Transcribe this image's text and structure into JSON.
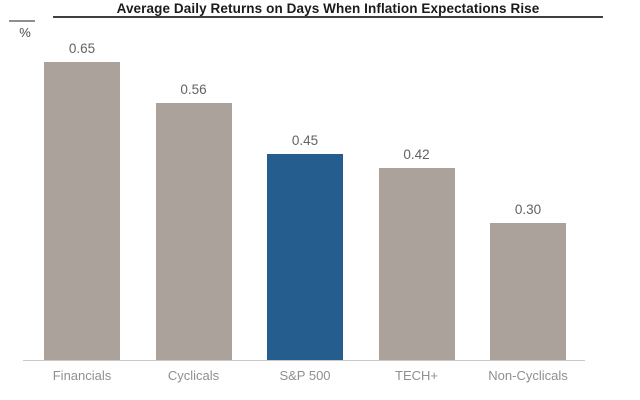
{
  "title": "Average Daily Returns on Days When Inflation Expectations Rise",
  "y_axis_unit": "%",
  "chart_data": {
    "type": "bar",
    "title": "Average Daily Returns on Days When Inflation Expectations Rise",
    "categories": [
      "Financials",
      "Cyclicals",
      "S&P 500",
      "TECH+",
      "Non-Cyclicals"
    ],
    "values": [
      0.65,
      0.56,
      0.45,
      0.42,
      0.3
    ],
    "data_labels": [
      "0.65",
      "0.56",
      "0.45",
      "0.42",
      "0.30"
    ],
    "highlighted_category": "S&P 500",
    "xlabel": "",
    "ylabel": "%",
    "ylim": [
      0,
      0.78
    ],
    "grid": false,
    "legend_position": "none",
    "y_axis_drawn": false,
    "x_axis_drawn": true
  },
  "colors": {
    "background": "#ffffff",
    "bar_default": "#aaa29b",
    "bar_highlight": "#255e8e",
    "axis_line": "#c9c9c9",
    "title_text": "#1b1b1b",
    "title_rule": "#3f3f3f",
    "unit_rule": "#8f8f8f",
    "unit_text": "#4a4a4a",
    "value_label": "#636363",
    "category_label": "#8f8f8f"
  }
}
